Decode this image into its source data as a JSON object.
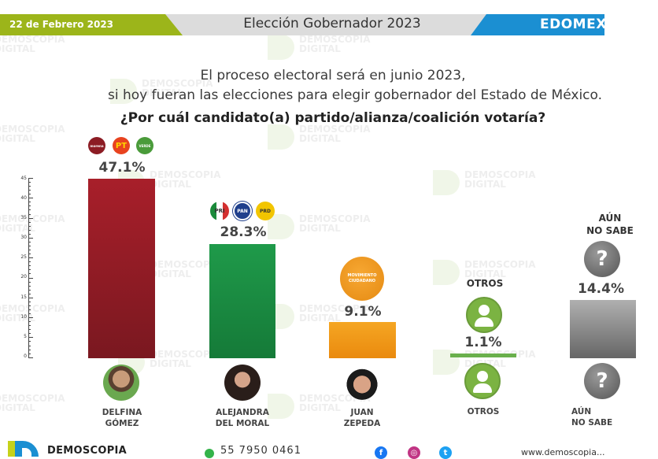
{
  "header": {
    "date": "22 de Febrero 2023",
    "title": "Elección Gobernador 2023",
    "region": "EDOMEX",
    "colors": {
      "green": "#9cb51a",
      "gray": "#dcdcdc",
      "blue": "#1b8fd2"
    }
  },
  "question": {
    "line1": "El proceso electoral será en junio 2023,",
    "line2": "si hoy fueran las elecciones para elegir gobernador del Estado de México.",
    "line3": "¿Por cuál candidato(a) partido/alianza/coalición votaría?"
  },
  "watermark": {
    "line1": "DEMOSCOPIA",
    "line2": "DIGITAL"
  },
  "axis": {
    "ticks": [
      "45",
      "40",
      "35",
      "30",
      "25",
      "20",
      "15",
      "10",
      "5",
      "0"
    ]
  },
  "candidates": [
    {
      "name_line1": "DELFINA",
      "name_line2": "GÓMEZ",
      "pct": "47.1%",
      "value": 47.1,
      "color": "#a3202a",
      "logos": [
        "morena",
        "PT",
        "VERDE"
      ]
    },
    {
      "name_line1": "ALEJANDRA",
      "name_line2": "DEL MORAL",
      "pct": "28.3%",
      "value": 28.3,
      "color": "#1f9a4a",
      "logos": [
        "PRI",
        "PAN",
        "PRD"
      ]
    },
    {
      "name_line1": "JUAN",
      "name_line2": "ZEPEDA",
      "pct": "9.1%",
      "value": 9.1,
      "color": "#f39c12",
      "logos": [
        "MOVIMIENTO CIUDADANO"
      ]
    },
    {
      "name_line1": "OTROS",
      "name_line2": "",
      "top_label": "OTROS",
      "pct": "1.1%",
      "value": 1.1,
      "color": "#6ab04c"
    },
    {
      "name_line1": "AÚN",
      "name_line2": "NO SABE",
      "top_label_line1": "AÚN",
      "top_label_line2": "NO SABE",
      "pct": "14.4%",
      "value": 14.4,
      "color": "#8a8a8a"
    }
  ],
  "footer": {
    "brand": "DEMOSCOPIA",
    "phone": "55 7950 0461",
    "social": [
      "facebook",
      "instagram",
      "twitter"
    ],
    "website": "www.demoscopia..."
  },
  "chart_data": {
    "type": "bar",
    "title": "Elección Gobernador 2023 - EDOMEX",
    "subtitle": "¿Por cuál candidato(a) partido/alianza/coalición votaría?",
    "categories": [
      "Delfina Gómez",
      "Alejandra Del Moral",
      "Juan Zepeda",
      "Otros",
      "Aún no sabe"
    ],
    "values": [
      47.1,
      28.3,
      9.1,
      1.1,
      14.4
    ],
    "value_labels": [
      "47.1%",
      "28.3%",
      "9.1%",
      "1.1%",
      "14.4%"
    ],
    "colors": [
      "#a3202a",
      "#1f9a4a",
      "#f39c12",
      "#6ab04c",
      "#8a8a8a"
    ],
    "xlabel": "",
    "ylabel": "",
    "ylim": [
      0,
      45
    ],
    "yticks": [
      0,
      5,
      10,
      15,
      20,
      25,
      30,
      35,
      40,
      45
    ],
    "grid": false,
    "legend": "none"
  }
}
